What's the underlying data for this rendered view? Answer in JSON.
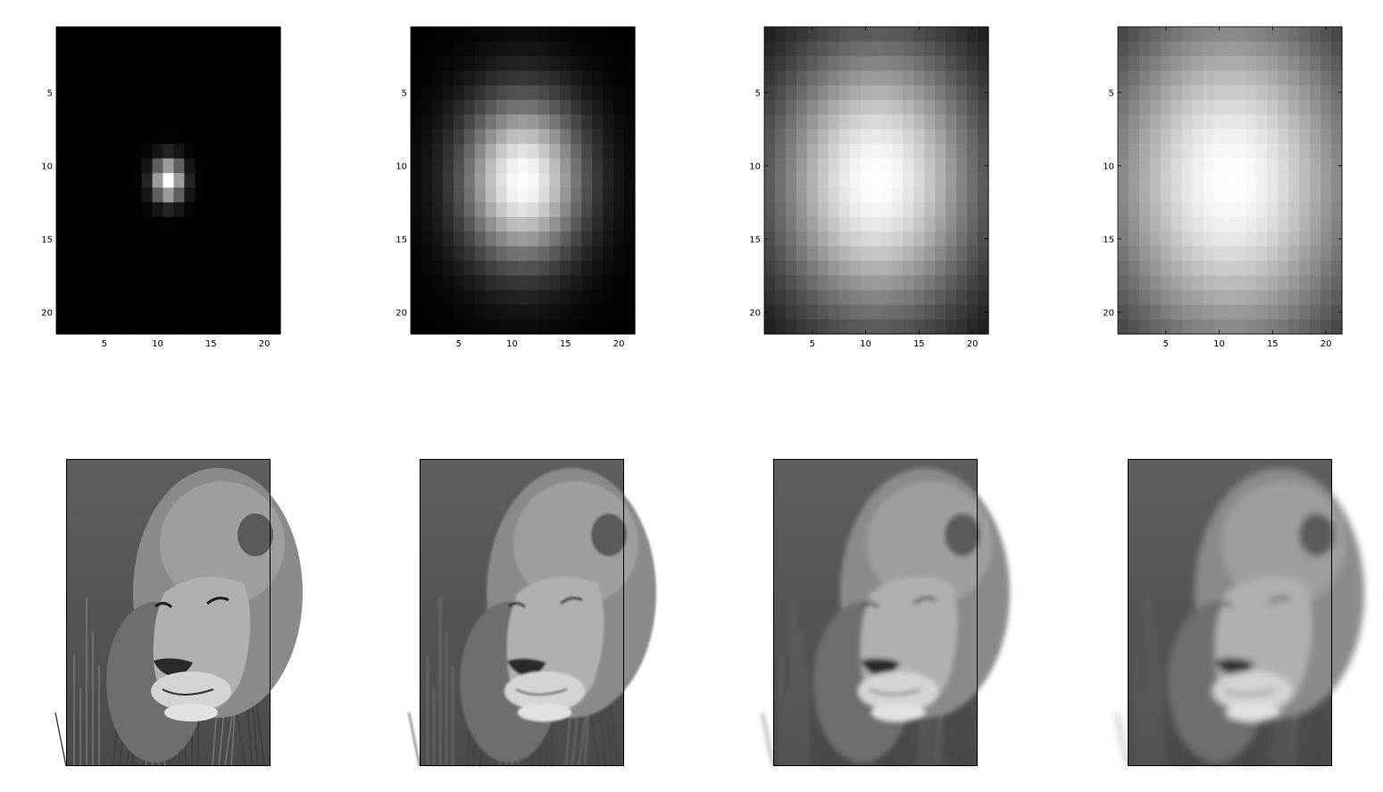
{
  "chart_data": [
    {
      "type": "heatmap",
      "colormap": "gray",
      "grid": false,
      "kernel": "2D Gaussian (21x21)",
      "sigma_estimate": 1,
      "x_range": [
        1,
        21
      ],
      "y_range": [
        1,
        21
      ],
      "xticks": [
        "5",
        "10",
        "15",
        "20"
      ],
      "yticks": [
        "5",
        "10",
        "15",
        "20"
      ],
      "peak_cell": [
        11,
        11
      ]
    },
    {
      "type": "heatmap",
      "colormap": "gray",
      "grid": false,
      "kernel": "2D Gaussian (21x21)",
      "sigma_estimate": 4,
      "x_range": [
        1,
        21
      ],
      "y_range": [
        1,
        21
      ],
      "xticks": [
        "5",
        "10",
        "15",
        "20"
      ],
      "yticks": [
        "5",
        "10",
        "15",
        "20"
      ],
      "peak_cell": [
        11,
        11
      ]
    },
    {
      "type": "heatmap",
      "colormap": "gray",
      "grid": false,
      "kernel": "2D Gaussian (21x21)",
      "sigma_estimate": 7,
      "x_range": [
        1,
        21
      ],
      "y_range": [
        1,
        21
      ],
      "xticks": [
        "5",
        "10",
        "15",
        "20"
      ],
      "yticks": [
        "5",
        "10",
        "15",
        "20"
      ],
      "peak_cell": [
        11,
        11
      ]
    },
    {
      "type": "heatmap",
      "colormap": "gray",
      "grid": false,
      "kernel": "2D Gaussian (21x21)",
      "sigma_estimate": 9,
      "x_range": [
        1,
        21
      ],
      "y_range": [
        1,
        21
      ],
      "xticks": [
        "5",
        "10",
        "15",
        "20"
      ],
      "yticks": [
        "5",
        "10",
        "15",
        "20"
      ],
      "peak_cell": [
        11,
        11
      ]
    }
  ],
  "photos": [
    {
      "subject": "lion",
      "blur_level": 0
    },
    {
      "subject": "lion",
      "blur_level": 1
    },
    {
      "subject": "lion",
      "blur_level": 2
    },
    {
      "subject": "lion",
      "blur_level": 3
    }
  ],
  "colors": {
    "background": "#ffffff",
    "axis": "#000000"
  }
}
